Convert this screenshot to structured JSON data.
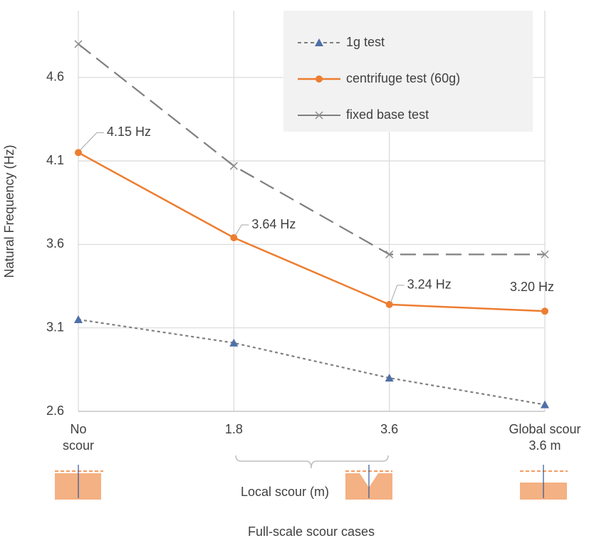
{
  "chart_data": {
    "type": "line",
    "x_title": "Full-scale scour cases",
    "y_title": "Natural Frequency (Hz)",
    "annotation": "Local scour (m)",
    "categories": [
      "No scour",
      "1.8",
      "3.6",
      "Global scour 3.6 m"
    ],
    "series": [
      {
        "name": "1g test",
        "color": "#7f7f7f",
        "marker_color": "#4e6fa8",
        "values": [
          3.15,
          3.01,
          2.8,
          2.64
        ]
      },
      {
        "name": "centrifuge test (60g)",
        "color": "#ed7d31",
        "marker_color": "#ed7d31",
        "values": [
          4.15,
          3.64,
          3.24,
          3.2
        ],
        "value_labels": [
          "4.15 Hz",
          "3.64 Hz",
          "3.24 Hz",
          "3.20 Hz"
        ]
      },
      {
        "name": "fixed base test",
        "color": "#7f7f7f",
        "marker_color": "#8c8c8c",
        "values": [
          4.8,
          4.07,
          3.54,
          3.54
        ]
      }
    ],
    "ylim": [
      2.6,
      5.0
    ],
    "yticks": [
      2.6,
      3.1,
      3.6,
      4.1,
      4.6
    ],
    "grid": true
  }
}
